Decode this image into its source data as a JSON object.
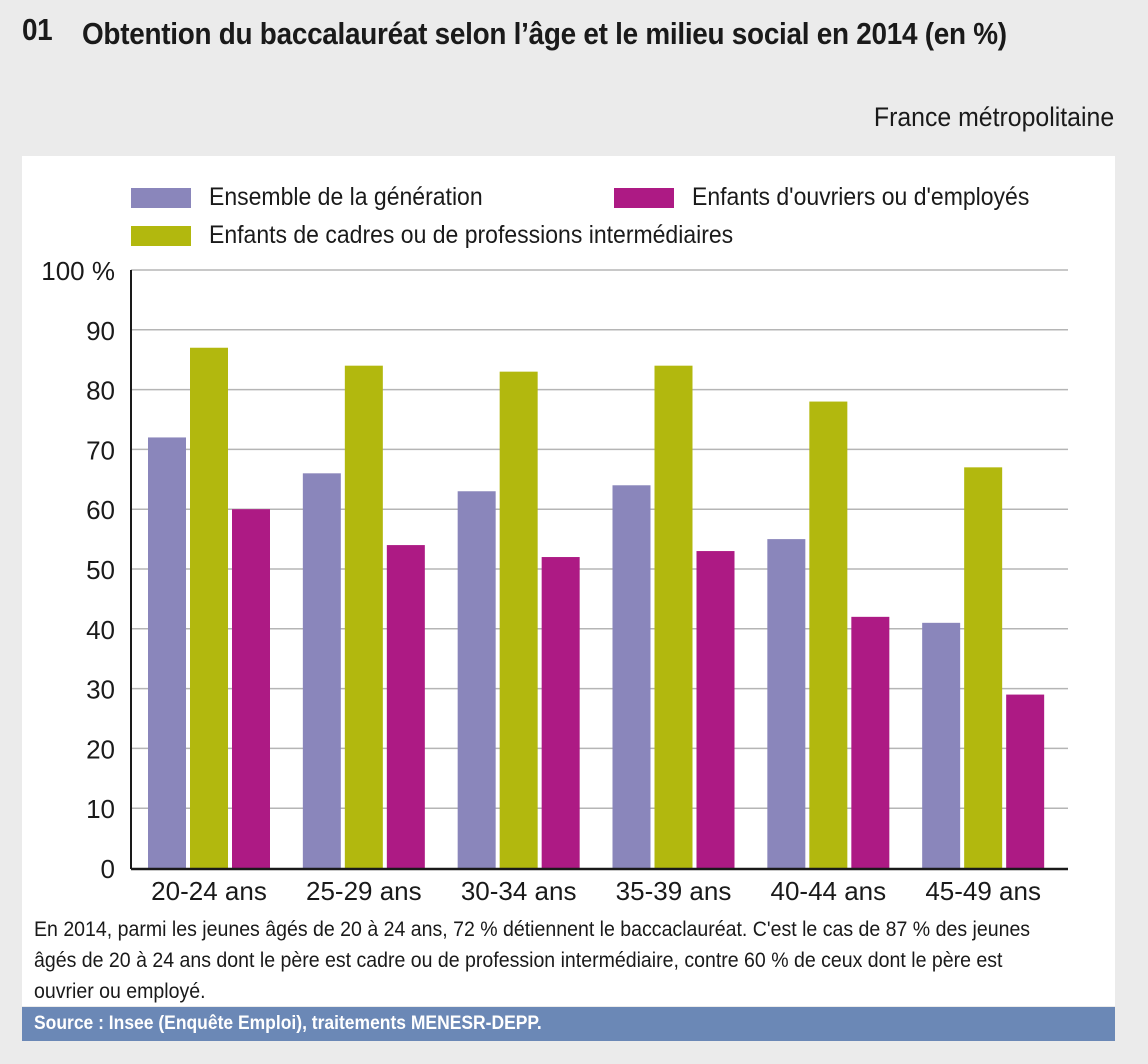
{
  "header": {
    "number": "01",
    "title": "Obtention du baccalauréat selon l’âge et le milieu social en 2014 (en %)",
    "region": "France métropolitaine"
  },
  "colors": {
    "ensemble": "#8a86bb",
    "cadres": "#b2b80e",
    "ouvriers": "#ad1a84",
    "grid": "#b5b5b5",
    "axis": "#1a1a1a",
    "source_bg": "#6b88b6"
  },
  "chart_data": {
    "type": "bar",
    "title": "Obtention du baccalauréat selon l’âge et le milieu social en 2014 (en %)",
    "xlabel": "",
    "ylabel": "",
    "ylim": [
      0,
      100
    ],
    "yticks": [
      0,
      10,
      20,
      30,
      40,
      50,
      60,
      70,
      80,
      90,
      100
    ],
    "ytick_labels": [
      "0",
      "10",
      "20",
      "30",
      "40",
      "50",
      "60",
      "70",
      "80",
      "90",
      "100 %"
    ],
    "grid": true,
    "legend_position": "top",
    "categories": [
      "20-24 ans",
      "25-29 ans",
      "30-34 ans",
      "35-39 ans",
      "40-44 ans",
      "45-49 ans"
    ],
    "series": [
      {
        "name": "Ensemble de la génération",
        "color": "#8a86bb",
        "values": [
          72,
          66,
          63,
          64,
          55,
          41
        ]
      },
      {
        "name": "Enfants de cadres ou de professions intermédiaires",
        "color": "#b2b80e",
        "values": [
          87,
          84,
          83,
          84,
          78,
          67
        ]
      },
      {
        "name": "Enfants d'ouvriers ou d'employés",
        "color": "#ad1a84",
        "values": [
          60,
          54,
          52,
          53,
          42,
          29
        ]
      }
    ]
  },
  "legend": {
    "ensemble": "Ensemble de la génération",
    "ouvriers": "Enfants d'ouvriers ou d'employés",
    "cadres": "Enfants de cadres ou de professions intermédiaires"
  },
  "caption": "En 2014, parmi les jeunes âgés de 20 à 24 ans, 72 % détiennent le baccaclauréat. C'est le cas de 87 % des jeunes âgés de 20 à 24 ans dont le père est cadre ou de profession intermédiaire, contre 60 % de ceux dont le père est ouvrier ou employé.",
  "source": "Source : Insee (Enquête Emploi), traitements MENESR-DEPP."
}
